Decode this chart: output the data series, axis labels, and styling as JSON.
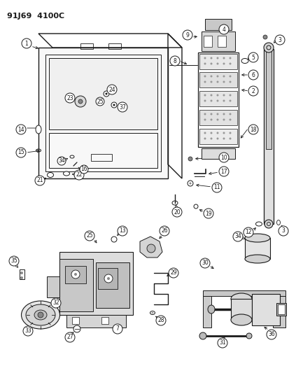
{
  "title": "91J69  4100C",
  "bg_color": "#ffffff",
  "line_color": "#1a1a1a",
  "fig_width": 4.14,
  "fig_height": 5.33,
  "dpi": 100
}
